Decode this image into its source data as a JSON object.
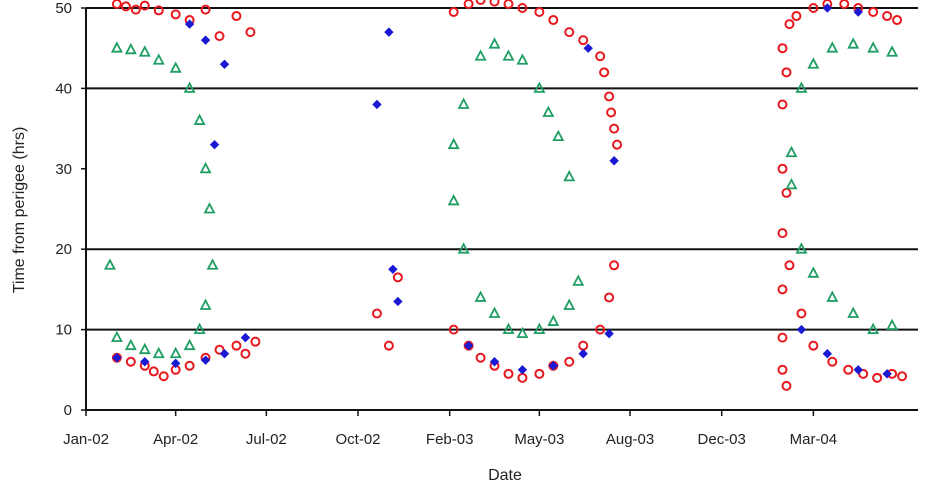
{
  "chart_data": {
    "type": "scatter",
    "title": "",
    "xlabel": "Date",
    "ylabel": "Time from perigee (hrs)",
    "x_scale": "date",
    "xlim": [
      "2002-01-01",
      "2004-04-15"
    ],
    "ylim": [
      0,
      50
    ],
    "x_tick_labels": [
      "Jan-02",
      "Apr-02",
      "Jul-02",
      "Oct-02",
      "Feb-03",
      "May-03",
      "Aug-03",
      "Dec-03",
      "Mar-04"
    ],
    "x_tick_dates": [
      "2002-01-01",
      "2002-04-01",
      "2002-07-01",
      "2002-10-01",
      "2003-01-01",
      "2003-04-01",
      "2003-07-01",
      "2003-10-01",
      "2004-01-01"
    ],
    "y_tick_labels": [
      "0",
      "10",
      "20",
      "30",
      "40",
      "50"
    ],
    "y_ticks": [
      0,
      10,
      20,
      30,
      40,
      50
    ],
    "gridlines_y": [
      10,
      20,
      40,
      50
    ],
    "legend": "none",
    "series": [
      {
        "color": "#e8191e",
        "marker": "open-circle",
        "points": [
          [
            "2002-02-01",
            50.5
          ],
          [
            "2002-02-10",
            50.2
          ],
          [
            "2002-02-20",
            49.8
          ],
          [
            "2002-03-01",
            50.3
          ],
          [
            "2002-03-15",
            49.7
          ],
          [
            "2002-04-01",
            49.2
          ],
          [
            "2002-04-15",
            48.5
          ],
          [
            "2002-05-01",
            49.8
          ],
          [
            "2002-05-15",
            46.5
          ],
          [
            "2002-06-01",
            49.0
          ],
          [
            "2002-06-15",
            47.0
          ],
          [
            "2002-02-01",
            6.5
          ],
          [
            "2002-02-15",
            6.0
          ],
          [
            "2002-03-01",
            5.5
          ],
          [
            "2002-03-10",
            4.8
          ],
          [
            "2002-03-20",
            4.2
          ],
          [
            "2002-04-01",
            5.0
          ],
          [
            "2002-04-15",
            5.5
          ],
          [
            "2002-05-01",
            6.5
          ],
          [
            "2002-05-15",
            7.5
          ],
          [
            "2002-06-01",
            8.0
          ],
          [
            "2002-06-10",
            7.0
          ],
          [
            "2002-06-20",
            8.5
          ],
          [
            "2002-10-20",
            12.0
          ],
          [
            "2002-11-01",
            8.0
          ],
          [
            "2002-11-10",
            16.5
          ],
          [
            "2003-01-05",
            49.5
          ],
          [
            "2003-01-20",
            50.5
          ],
          [
            "2003-02-01",
            51.0
          ],
          [
            "2003-02-15",
            50.8
          ],
          [
            "2003-03-01",
            50.5
          ],
          [
            "2003-03-15",
            50.0
          ],
          [
            "2003-04-01",
            49.5
          ],
          [
            "2003-04-15",
            48.5
          ],
          [
            "2003-05-01",
            47.0
          ],
          [
            "2003-05-15",
            46.0
          ],
          [
            "2003-01-05",
            10.0
          ],
          [
            "2003-01-20",
            8.0
          ],
          [
            "2003-02-01",
            6.5
          ],
          [
            "2003-02-15",
            5.5
          ],
          [
            "2003-03-01",
            4.5
          ],
          [
            "2003-03-15",
            4.0
          ],
          [
            "2003-04-01",
            4.5
          ],
          [
            "2003-04-15",
            5.5
          ],
          [
            "2003-05-01",
            6.0
          ],
          [
            "2003-05-15",
            8.0
          ],
          [
            "2003-06-01",
            10.0
          ],
          [
            "2003-06-10",
            14.0
          ],
          [
            "2003-06-15",
            18.0
          ],
          [
            "2003-06-01",
            44.0
          ],
          [
            "2003-06-05",
            42.0
          ],
          [
            "2003-06-10",
            39.0
          ],
          [
            "2003-06-12",
            37.0
          ],
          [
            "2003-06-15",
            35.0
          ],
          [
            "2003-06-18",
            33.0
          ],
          [
            "2003-12-01",
            45.0
          ],
          [
            "2003-12-01",
            38.0
          ],
          [
            "2003-12-01",
            30.0
          ],
          [
            "2003-12-01",
            22.0
          ],
          [
            "2003-12-01",
            15.0
          ],
          [
            "2003-12-01",
            9.0
          ],
          [
            "2003-12-01",
            5.0
          ],
          [
            "2003-12-05",
            3.0
          ],
          [
            "2003-12-05",
            42.0
          ],
          [
            "2003-12-05",
            27.0
          ],
          [
            "2003-12-08",
            48.0
          ],
          [
            "2003-12-08",
            18.0
          ],
          [
            "2003-12-15",
            49.0
          ],
          [
            "2004-01-01",
            50.0
          ],
          [
            "2004-01-15",
            50.5
          ],
          [
            "2004-02-01",
            50.5
          ],
          [
            "2004-02-15",
            50.0
          ],
          [
            "2004-03-01",
            49.5
          ],
          [
            "2004-03-15",
            49.0
          ],
          [
            "2004-03-25",
            48.5
          ],
          [
            "2003-12-20",
            12.0
          ],
          [
            "2004-01-01",
            8.0
          ],
          [
            "2004-01-20",
            6.0
          ],
          [
            "2004-02-05",
            5.0
          ],
          [
            "2004-02-20",
            4.5
          ],
          [
            "2004-03-05",
            4.0
          ],
          [
            "2004-03-20",
            4.5
          ],
          [
            "2004-03-30",
            4.2
          ]
        ]
      },
      {
        "color": "#1f9e63",
        "marker": "open-triangle",
        "points": [
          [
            "2002-02-01",
            45.0
          ],
          [
            "2002-02-15",
            44.8
          ],
          [
            "2002-03-01",
            44.5
          ],
          [
            "2002-03-15",
            43.5
          ],
          [
            "2002-04-01",
            42.5
          ],
          [
            "2002-04-15",
            40.0
          ],
          [
            "2002-04-25",
            36.0
          ],
          [
            "2002-05-01",
            30.0
          ],
          [
            "2002-05-05",
            25.0
          ],
          [
            "2002-05-08",
            18.0
          ],
          [
            "2002-02-01",
            9.0
          ],
          [
            "2002-02-15",
            8.0
          ],
          [
            "2002-03-01",
            7.5
          ],
          [
            "2002-03-15",
            7.0
          ],
          [
            "2002-04-01",
            7.0
          ],
          [
            "2002-04-15",
            8.0
          ],
          [
            "2002-04-25",
            10.0
          ],
          [
            "2002-05-01",
            13.0
          ],
          [
            "2002-01-25",
            18.0
          ],
          [
            "2003-01-05",
            33.0
          ],
          [
            "2003-01-15",
            38.0
          ],
          [
            "2003-02-01",
            44.0
          ],
          [
            "2003-02-15",
            45.5
          ],
          [
            "2003-03-01",
            44.0
          ],
          [
            "2003-03-15",
            43.5
          ],
          [
            "2003-04-01",
            40.0
          ],
          [
            "2003-04-10",
            37.0
          ],
          [
            "2003-04-20",
            34.0
          ],
          [
            "2003-05-01",
            29.0
          ],
          [
            "2003-01-05",
            26.0
          ],
          [
            "2003-01-15",
            20.0
          ],
          [
            "2003-02-01",
            14.0
          ],
          [
            "2003-02-15",
            12.0
          ],
          [
            "2003-03-01",
            10.0
          ],
          [
            "2003-03-15",
            9.5
          ],
          [
            "2003-04-01",
            10.0
          ],
          [
            "2003-04-15",
            11.0
          ],
          [
            "2003-05-01",
            13.0
          ],
          [
            "2003-05-10",
            16.0
          ],
          [
            "2003-12-10",
            32.0
          ],
          [
            "2003-12-20",
            40.0
          ],
          [
            "2004-01-01",
            43.0
          ],
          [
            "2004-01-20",
            45.0
          ],
          [
            "2004-02-10",
            45.5
          ],
          [
            "2004-03-01",
            45.0
          ],
          [
            "2004-03-20",
            44.5
          ],
          [
            "2003-12-10",
            28.0
          ],
          [
            "2003-12-20",
            20.0
          ],
          [
            "2004-01-01",
            17.0
          ],
          [
            "2004-01-20",
            14.0
          ],
          [
            "2004-02-10",
            12.0
          ],
          [
            "2004-03-01",
            10.0
          ],
          [
            "2004-03-20",
            10.5
          ]
        ]
      },
      {
        "color": "#1a1ad4",
        "marker": "filled-diamond",
        "points": [
          [
            "2002-02-01",
            6.5
          ],
          [
            "2002-03-01",
            6.0
          ],
          [
            "2002-04-01",
            5.8
          ],
          [
            "2002-05-01",
            6.2
          ],
          [
            "2002-05-20",
            7.0
          ],
          [
            "2002-06-10",
            9.0
          ],
          [
            "2002-04-15",
            48.0
          ],
          [
            "2002-05-01",
            46.0
          ],
          [
            "2002-05-20",
            43.0
          ],
          [
            "2002-05-10",
            33.0
          ],
          [
            "2002-10-20",
            38.0
          ],
          [
            "2002-11-01",
            47.0
          ],
          [
            "2002-11-05",
            17.5
          ],
          [
            "2002-11-10",
            13.5
          ],
          [
            "2003-01-20",
            8.0
          ],
          [
            "2003-02-15",
            6.0
          ],
          [
            "2003-03-15",
            5.0
          ],
          [
            "2003-04-15",
            5.5
          ],
          [
            "2003-05-15",
            7.0
          ],
          [
            "2003-06-10",
            9.5
          ],
          [
            "2003-05-20",
            45.0
          ],
          [
            "2003-06-15",
            31.0
          ],
          [
            "2003-12-20",
            10.0
          ],
          [
            "2004-01-15",
            7.0
          ],
          [
            "2004-02-15",
            5.0
          ],
          [
            "2004-03-15",
            4.5
          ],
          [
            "2004-01-15",
            50.0
          ],
          [
            "2004-02-15",
            49.5
          ]
        ]
      }
    ]
  }
}
